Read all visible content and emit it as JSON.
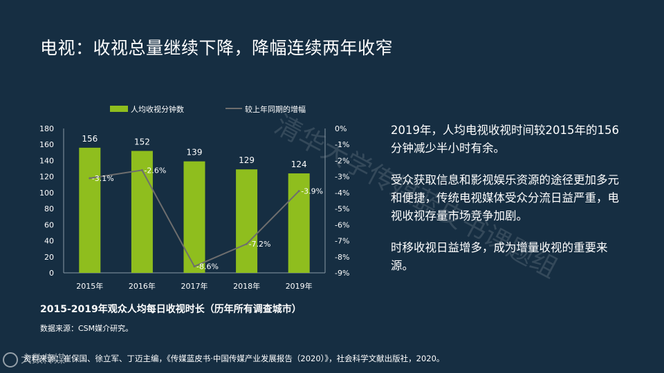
{
  "slide": {
    "title": "电视：收视总量继续下降，降幅连续两年收窄",
    "watermark": "清华大学传媒蓝皮书课题组"
  },
  "chart_data": {
    "type": "bar",
    "categories": [
      "2015年",
      "2016年",
      "2017年",
      "2018年",
      "2019年"
    ],
    "series": [
      {
        "name": "人均收视分钟数",
        "type": "bar",
        "axis": "left",
        "values": [
          156,
          152,
          139,
          129,
          124
        ],
        "labels": [
          "156",
          "152",
          "139",
          "129",
          "124"
        ]
      },
      {
        "name": "较上年同期的增幅",
        "type": "line",
        "axis": "right",
        "values": [
          -3.1,
          -2.6,
          -8.6,
          -7.2,
          -3.9
        ],
        "labels": [
          "-3.1%",
          "-2.6%",
          "-8.6%",
          "-7.2%",
          "-3.9%"
        ]
      }
    ],
    "y_left": {
      "range": [
        0,
        180
      ],
      "ticks": [
        "0",
        "20",
        "40",
        "60",
        "80",
        "100",
        "120",
        "140",
        "160",
        "180"
      ]
    },
    "y_right": {
      "range": [
        -9,
        0
      ],
      "ticks": [
        "0%",
        "-1%",
        "-2%",
        "-3%",
        "-4%",
        "-5%",
        "-6%",
        "-7%",
        "-8%",
        "-9%"
      ]
    },
    "legend": "top",
    "grid": false,
    "colors": {
      "bar": "#8fbe1e",
      "line": "#6e6e6e"
    },
    "caption": "2015-2019年观众人均每日收视时长（历年所有调查城市）",
    "source": "数据来源：CSM媒介研究。"
  },
  "right_text": {
    "p1": "2019年，人均电视收视时间较2015年的156分钟减少半小时有余。",
    "p2": "受众获取信息和影视娱乐资源的途径更加多元和便捷，传统电视媒体受众分流日益严重，电视收视存量市场竞争加剧。",
    "p3": "时移收视日益增多，成为增量收视的重要来源。"
  },
  "footnote": "资料来源：崔保国、徐立军、丁迈主编，《传媒蓝皮书·中国传媒产业发展报告（2020）》，社会科学文献出版社，2020。",
  "logo": {
    "text": "大数传媒"
  },
  "colors": {
    "background": "#162e42",
    "text": "#ffffff"
  }
}
